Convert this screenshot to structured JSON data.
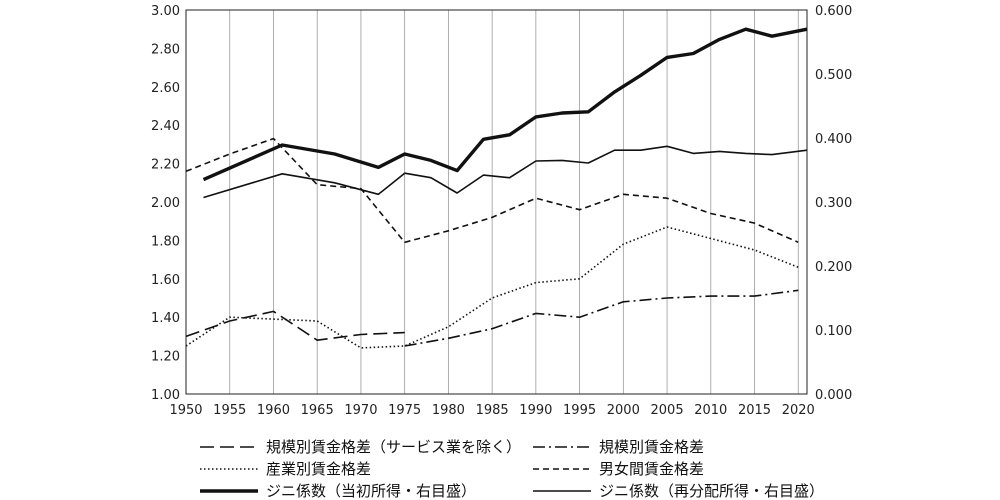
{
  "chart_data": {
    "type": "line",
    "x_ticks": [
      "1950",
      "1955",
      "1960",
      "1965",
      "1970",
      "1975",
      "1980",
      "1985",
      "1990",
      "1995",
      "2000",
      "2005",
      "2010",
      "2015",
      "2020"
    ],
    "y_left_ticks": [
      "1.00",
      "1.20",
      "1.40",
      "1.60",
      "1.80",
      "2.00",
      "2.20",
      "2.40",
      "2.60",
      "2.80",
      "3.00"
    ],
    "y_right_ticks": [
      "0.000",
      "0.100",
      "0.200",
      "0.300",
      "0.400",
      "0.500",
      "0.600"
    ],
    "xlim": [
      1950,
      2021
    ],
    "ylim_left": [
      1.0,
      3.0
    ],
    "ylim_right": [
      0.0,
      0.6
    ],
    "grid": "vertical-only",
    "legend_position": "bottom",
    "series": [
      {
        "name": "規模別賃金格差（サービス業を除く）",
        "axis": "left",
        "style": "longdash",
        "x": [
          1950,
          1955,
          1960,
          1965,
          1970,
          1975
        ],
        "y": [
          1.3,
          1.38,
          1.43,
          1.28,
          1.31,
          1.32
        ]
      },
      {
        "name": "規模別賃金格差",
        "axis": "left",
        "style": "dashdot",
        "x": [
          1975,
          1980,
          1985,
          1990,
          1995,
          2000,
          2005,
          2010,
          2015,
          2020
        ],
        "y": [
          1.25,
          1.29,
          1.34,
          1.42,
          1.4,
          1.48,
          1.5,
          1.51,
          1.51,
          1.54
        ]
      },
      {
        "name": "産業別賃金格差",
        "axis": "left",
        "style": "dotted",
        "x": [
          1950,
          1955,
          1960,
          1965,
          1970,
          1975,
          1980,
          1985,
          1990,
          1995,
          2000,
          2005,
          2010,
          2015,
          2020
        ],
        "y": [
          1.25,
          1.4,
          1.39,
          1.38,
          1.24,
          1.25,
          1.35,
          1.5,
          1.58,
          1.6,
          1.78,
          1.87,
          1.81,
          1.75,
          1.66
        ]
      },
      {
        "name": "男女間賃金格差",
        "axis": "left",
        "style": "dashed",
        "x": [
          1950,
          1955,
          1960,
          1965,
          1970,
          1975,
          1980,
          1985,
          1990,
          1995,
          2000,
          2005,
          2010,
          2015,
          2020
        ],
        "y": [
          2.16,
          2.25,
          2.33,
          2.09,
          2.07,
          1.79,
          1.85,
          1.92,
          2.02,
          1.96,
          2.04,
          2.02,
          1.94,
          1.89,
          1.79
        ]
      },
      {
        "name": "ジニ係数（当初所得・右目盛）",
        "axis": "right",
        "style": "thick",
        "x": [
          1952,
          1961,
          1967,
          1972,
          1975,
          1978,
          1981,
          1984,
          1987,
          1990,
          1993,
          1996,
          1999,
          2002,
          2005,
          2008,
          2011,
          2014,
          2017,
          2021
        ],
        "y": [
          0.335,
          0.389,
          0.375,
          0.354,
          0.375,
          0.365,
          0.349,
          0.398,
          0.405,
          0.433,
          0.439,
          0.441,
          0.472,
          0.498,
          0.526,
          0.532,
          0.554,
          0.57,
          0.559,
          0.57
        ]
      },
      {
        "name": "ジニ係数（再分配所得・右目盛）",
        "axis": "right",
        "style": "solid",
        "x": [
          1952,
          1961,
          1967,
          1972,
          1975,
          1978,
          1981,
          1984,
          1987,
          1990,
          1993,
          1996,
          1999,
          2002,
          2005,
          2008,
          2011,
          2014,
          2017,
          2021
        ],
        "y": [
          0.307,
          0.344,
          0.33,
          0.312,
          0.345,
          0.338,
          0.314,
          0.342,
          0.338,
          0.364,
          0.365,
          0.361,
          0.381,
          0.381,
          0.387,
          0.376,
          0.379,
          0.376,
          0.374,
          0.381
        ]
      }
    ]
  }
}
